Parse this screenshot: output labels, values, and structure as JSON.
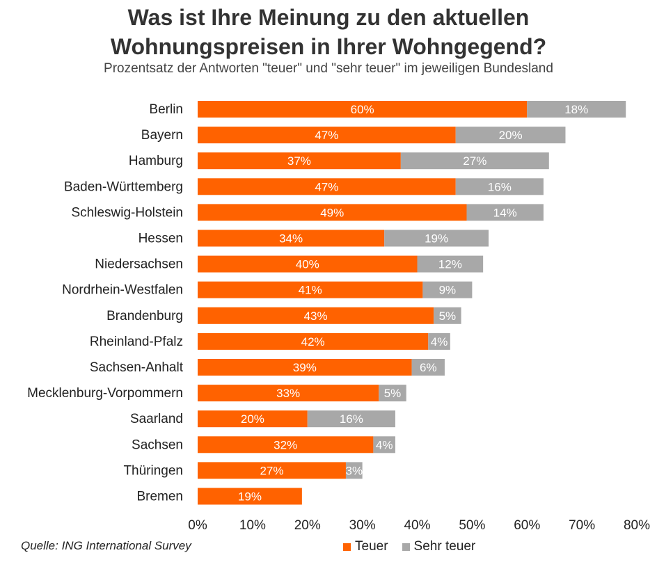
{
  "chart_data": {
    "type": "bar",
    "orientation": "horizontal",
    "stacked": true,
    "title": "Was ist Ihre Meinung zu den aktuellen Wohnungspreisen in Ihrer Wohngegend?",
    "title_lines": [
      "Was ist Ihre Meinung zu den aktuellen",
      "Wohnungspreisen in Ihrer Wohngegend?"
    ],
    "subtitle": "Prozentsatz der Antworten \"teuer\" und \"sehr teuer\" im jeweiligen Bundesland",
    "categories": [
      "Berlin",
      "Bayern",
      "Hamburg",
      "Baden-Württemberg",
      "Schleswig-Holstein",
      "Hessen",
      "Niedersachsen",
      "Nordrhein-Westfalen",
      "Brandenburg",
      "Rheinland-Pfalz",
      "Sachsen-Anhalt",
      "Mecklenburg-Vorpommern",
      "Saarland",
      "Sachsen",
      "Thüringen",
      "Bremen"
    ],
    "series": [
      {
        "name": "Teuer",
        "color": "#FF6200",
        "values": [
          60,
          47,
          37,
          47,
          49,
          34,
          40,
          41,
          43,
          42,
          39,
          33,
          20,
          32,
          27,
          19
        ]
      },
      {
        "name": "Sehr teuer",
        "color": "#A8A8A8",
        "values": [
          18,
          20,
          27,
          16,
          14,
          19,
          12,
          9,
          5,
          4,
          6,
          5,
          16,
          4,
          3,
          0
        ]
      }
    ],
    "data_labels": [
      [
        "60%",
        "47%",
        "37%",
        "47%",
        "49%",
        "34%",
        "40%",
        "41%",
        "43%",
        "42%",
        "39%",
        "33%",
        "20%",
        "32%",
        "27%",
        "19%"
      ],
      [
        "18%",
        "20%",
        "27%",
        "16%",
        "14%",
        "19%",
        "12%",
        "9%",
        "5%",
        "4%",
        "6%",
        "5%",
        "16%",
        "4%",
        "3%",
        ""
      ]
    ],
    "xlim": [
      0,
      80
    ],
    "xticks": [
      "0%",
      "10%",
      "20%",
      "30%",
      "40%",
      "50%",
      "60%",
      "70%",
      "80%"
    ],
    "grid": false,
    "legend_position": "bottom"
  },
  "source": "Quelle: ING International Survey"
}
